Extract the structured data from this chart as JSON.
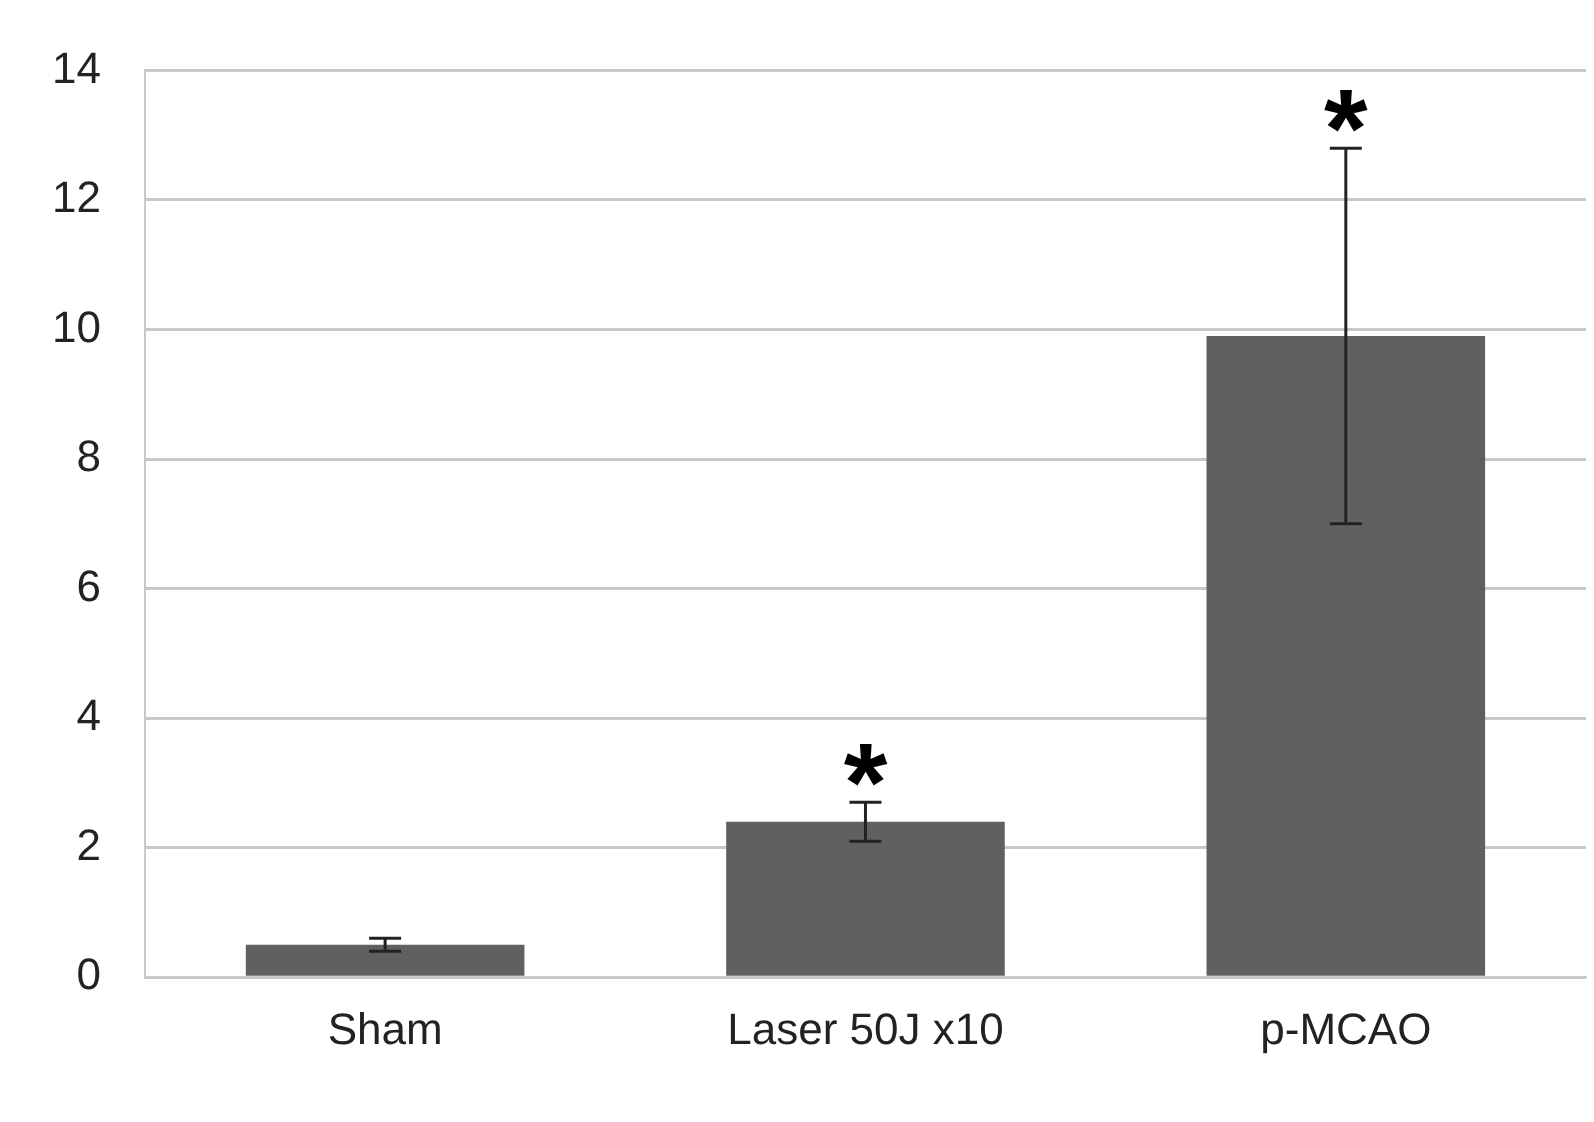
{
  "chart_data": {
    "type": "bar",
    "categories": [
      "Sham",
      "Laser 50J x10",
      "p-MCAO"
    ],
    "values": [
      0.5,
      2.4,
      9.9
    ],
    "color": "#606060",
    "errors": [
      [
        0.4,
        0.6
      ],
      [
        2.1,
        2.7
      ],
      [
        7.0,
        12.8
      ]
    ],
    "ylim": [
      0,
      14
    ],
    "yticks": [
      0,
      2,
      4,
      6,
      8,
      10,
      12,
      14
    ],
    "grid": "y",
    "annotations": [
      {
        "text": "*",
        "x": "Laser 50J x10",
        "y": 2.7
      },
      {
        "text": "*",
        "x": "p-MCAO",
        "y": 12.8
      }
    ]
  }
}
